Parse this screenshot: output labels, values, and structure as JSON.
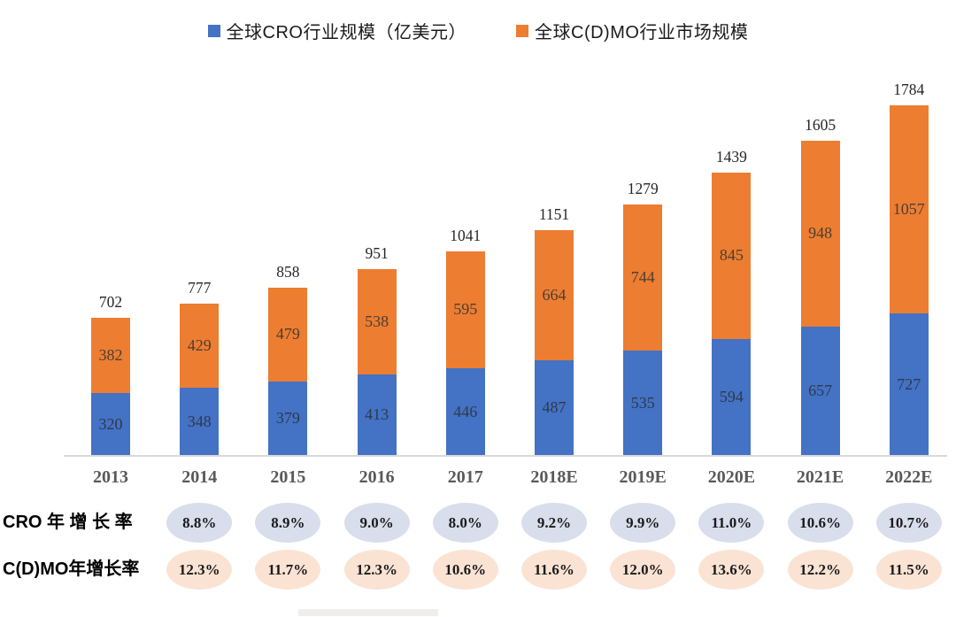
{
  "legend": [
    {
      "label": "全球CRO行业规模（亿美元）",
      "color": "#4472C4"
    },
    {
      "label": "全球C(D)MO行业市场规模",
      "color": "#ED7D31"
    }
  ],
  "chart_data": {
    "type": "bar",
    "stacked": true,
    "grid": false,
    "legend_position": "top",
    "categories": [
      "2013",
      "2014",
      "2015",
      "2016",
      "2017",
      "2018E",
      "2019E",
      "2020E",
      "2021E",
      "2022E"
    ],
    "series": [
      {
        "name": "全球CRO行业规模（亿美元）",
        "color": "#4472C4",
        "values": [
          320,
          348,
          379,
          413,
          446,
          487,
          535,
          594,
          657,
          727
        ]
      },
      {
        "name": "全球C(D)MO行业市场规模",
        "color": "#ED7D31",
        "values": [
          382,
          429,
          479,
          538,
          595,
          664,
          744,
          845,
          948,
          1057
        ]
      }
    ],
    "totals": [
      702,
      777,
      858,
      951,
      1041,
      1151,
      1279,
      1439,
      1605,
      1784
    ],
    "ylim": [
      0,
      1900
    ],
    "xlabel": "",
    "ylabel": ""
  },
  "growth_rows": [
    {
      "label": "CRO 年 增 长 率",
      "bubble_color": "#D8DEEC",
      "start_category": "2014",
      "values": [
        "8.8%",
        "8.9%",
        "9.0%",
        "8.0%",
        "9.2%",
        "9.9%",
        "11.0%",
        "10.6%",
        "10.7%"
      ]
    },
    {
      "label": "C(D)MO年增长率",
      "bubble_color": "#FBE3D4",
      "start_category": "2014",
      "values": [
        "12.3%",
        "11.7%",
        "12.3%",
        "10.6%",
        "11.6%",
        "12.0%",
        "13.6%",
        "12.2%",
        "11.5%"
      ]
    }
  ]
}
